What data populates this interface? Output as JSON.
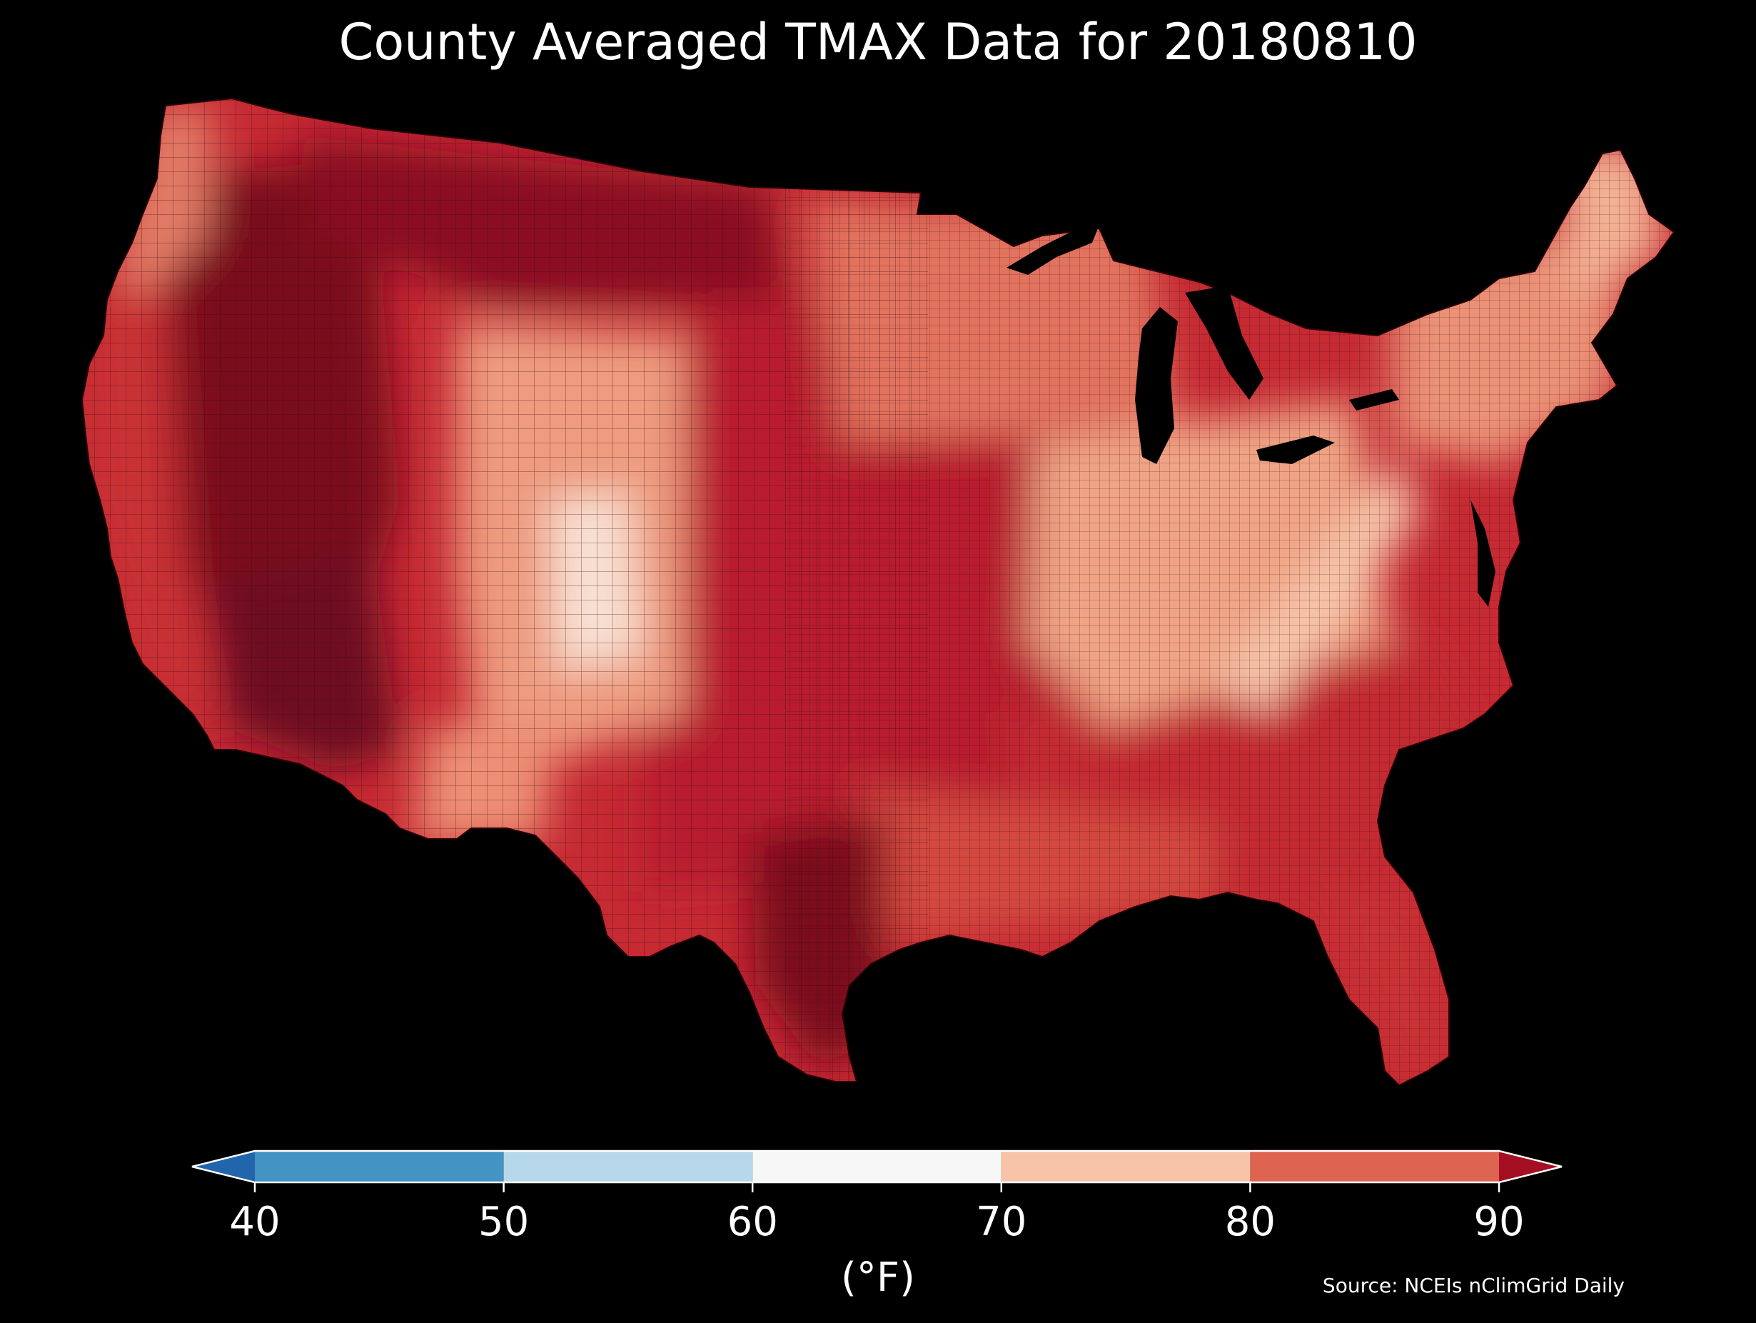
{
  "title": "County Averaged TMAX Data for 20180810",
  "source": "Source: NCEIs nClimGrid Daily",
  "colorbar": {
    "unit_label": "(°F)",
    "ticks": [
      "40",
      "50",
      "60",
      "70",
      "80",
      "90"
    ],
    "bins": [
      {
        "from": 30,
        "to": 40,
        "color": "#2166ac",
        "extend": "min"
      },
      {
        "from": 40,
        "to": 50,
        "color": "#4393c3"
      },
      {
        "from": 50,
        "to": 60,
        "color": "#b7d7ea"
      },
      {
        "from": 60,
        "to": 70,
        "color": "#f7f7f7"
      },
      {
        "from": 70,
        "to": 80,
        "color": "#f7c4a8"
      },
      {
        "from": 80,
        "to": 90,
        "color": "#dd6451"
      },
      {
        "from": 90,
        "to": 100,
        "color": "#a50f23",
        "extend": "max"
      }
    ]
  },
  "map": {
    "background": "#000000",
    "land_base_color": "#c62a33",
    "county_border_color": "#3a0a0d",
    "lake_color": "#000000",
    "regions": [
      {
        "name": "west-great-basin",
        "color": "#7a0a1f"
      },
      {
        "name": "california-coast",
        "color": "#c93035"
      },
      {
        "name": "pacific-northwest-coast",
        "color": "#e27c66"
      },
      {
        "name": "northern-rockies-montana",
        "color": "#8a0c22"
      },
      {
        "name": "colorado-rockies",
        "color": "#ee9b7f"
      },
      {
        "name": "colorado-high-peaks",
        "color": "#f8e0d2"
      },
      {
        "name": "southwest-desert",
        "color": "#6e0820"
      },
      {
        "name": "new-mexico-highlands",
        "color": "#ed8f74"
      },
      {
        "name": "texas-south",
        "color": "#7b0a1f"
      },
      {
        "name": "upper-midwest",
        "color": "#e2735e"
      },
      {
        "name": "central-plains",
        "color": "#b81e2e"
      },
      {
        "name": "ohio-valley",
        "color": "#f0a485"
      },
      {
        "name": "appalachians",
        "color": "#f6c5aa"
      },
      {
        "name": "northeast",
        "color": "#eb9277"
      },
      {
        "name": "maine",
        "color": "#f3b093"
      },
      {
        "name": "southeast",
        "color": "#c32a33"
      },
      {
        "name": "gulf-coast",
        "color": "#d34840"
      },
      {
        "name": "florida",
        "color": "#c93035"
      }
    ]
  }
}
